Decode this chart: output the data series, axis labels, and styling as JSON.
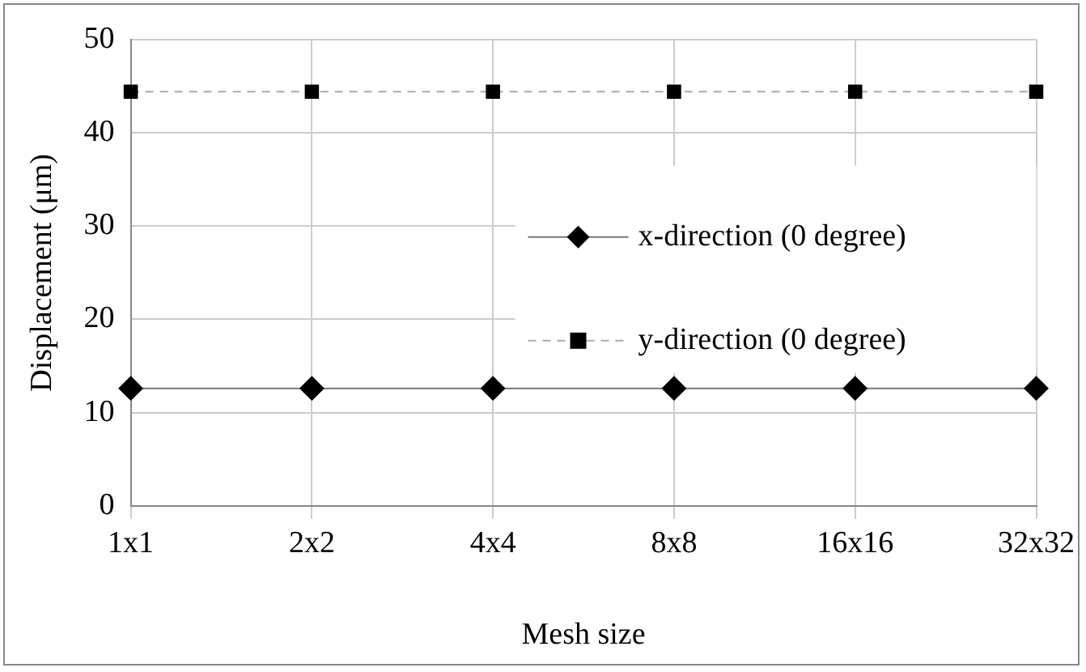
{
  "chart_data": {
    "type": "line",
    "xlabel": "Mesh size",
    "ylabel": "Displacement (μm)",
    "categories": [
      "1x1",
      "2x2",
      "4x4",
      "8x8",
      "16x16",
      "32x32"
    ],
    "series": [
      {
        "name": "x-direction (0 degree)",
        "color": "#000000",
        "values": [
          12.6,
          12.6,
          12.6,
          12.6,
          12.6,
          12.6
        ],
        "marker": "diamond",
        "line_style": "solid"
      },
      {
        "name": "y-direction (0 degree)",
        "color": "#000000",
        "values": [
          44.4,
          44.4,
          44.4,
          44.4,
          44.4,
          44.4
        ],
        "marker": "square",
        "line_style": "dashed"
      }
    ],
    "ylim": [
      0,
      50
    ],
    "yticks": [
      0,
      10,
      20,
      30,
      40,
      50
    ],
    "grid": true,
    "legend": "right"
  }
}
